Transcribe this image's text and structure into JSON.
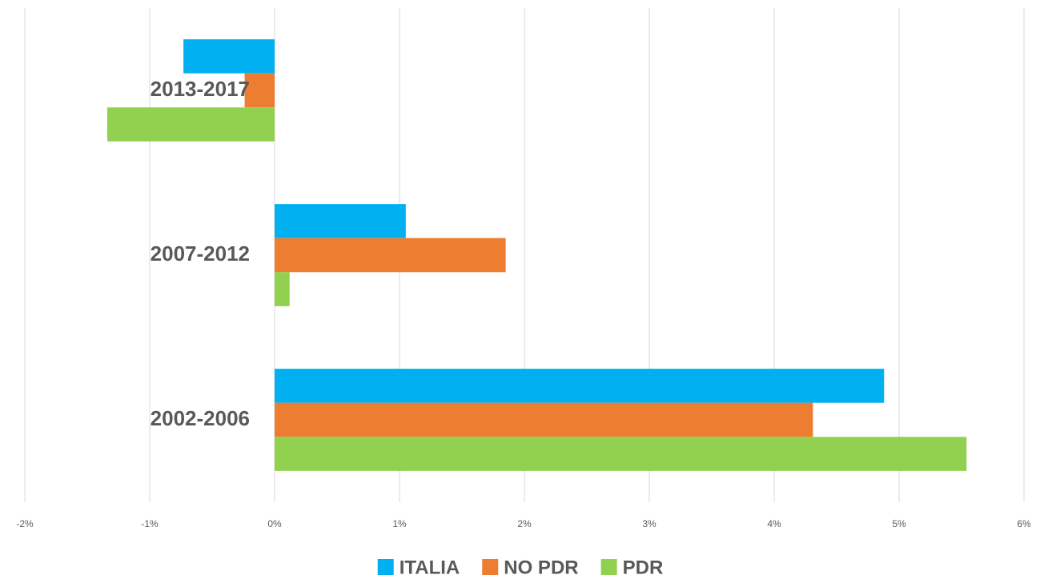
{
  "chart_data": {
    "type": "hbar",
    "categories": [
      "2013-2017",
      "2007-2012",
      "2002-2006"
    ],
    "series": [
      {
        "name": "ITALIA",
        "color": "#00b0f0",
        "values": [
          -0.73,
          1.05,
          4.88
        ]
      },
      {
        "name": "NO PDR",
        "color": "#ed7d31",
        "values": [
          -0.24,
          1.85,
          4.31
        ]
      },
      {
        "name": "PDR",
        "color": "#92d050",
        "values": [
          -1.34,
          0.12,
          5.54
        ]
      }
    ],
    "xlim": [
      -2,
      6
    ],
    "xticks": [
      {
        "value": -2,
        "label": "-2%"
      },
      {
        "value": -1,
        "label": "-1%"
      },
      {
        "value": 0,
        "label": "0%"
      },
      {
        "value": 1,
        "label": "1%"
      },
      {
        "value": 2,
        "label": "2%"
      },
      {
        "value": 3,
        "label": "3%"
      },
      {
        "value": 4,
        "label": "4%"
      },
      {
        "value": 5,
        "label": "5%"
      },
      {
        "value": 6,
        "label": "6%"
      }
    ],
    "grid": true,
    "legend": "bottom"
  }
}
